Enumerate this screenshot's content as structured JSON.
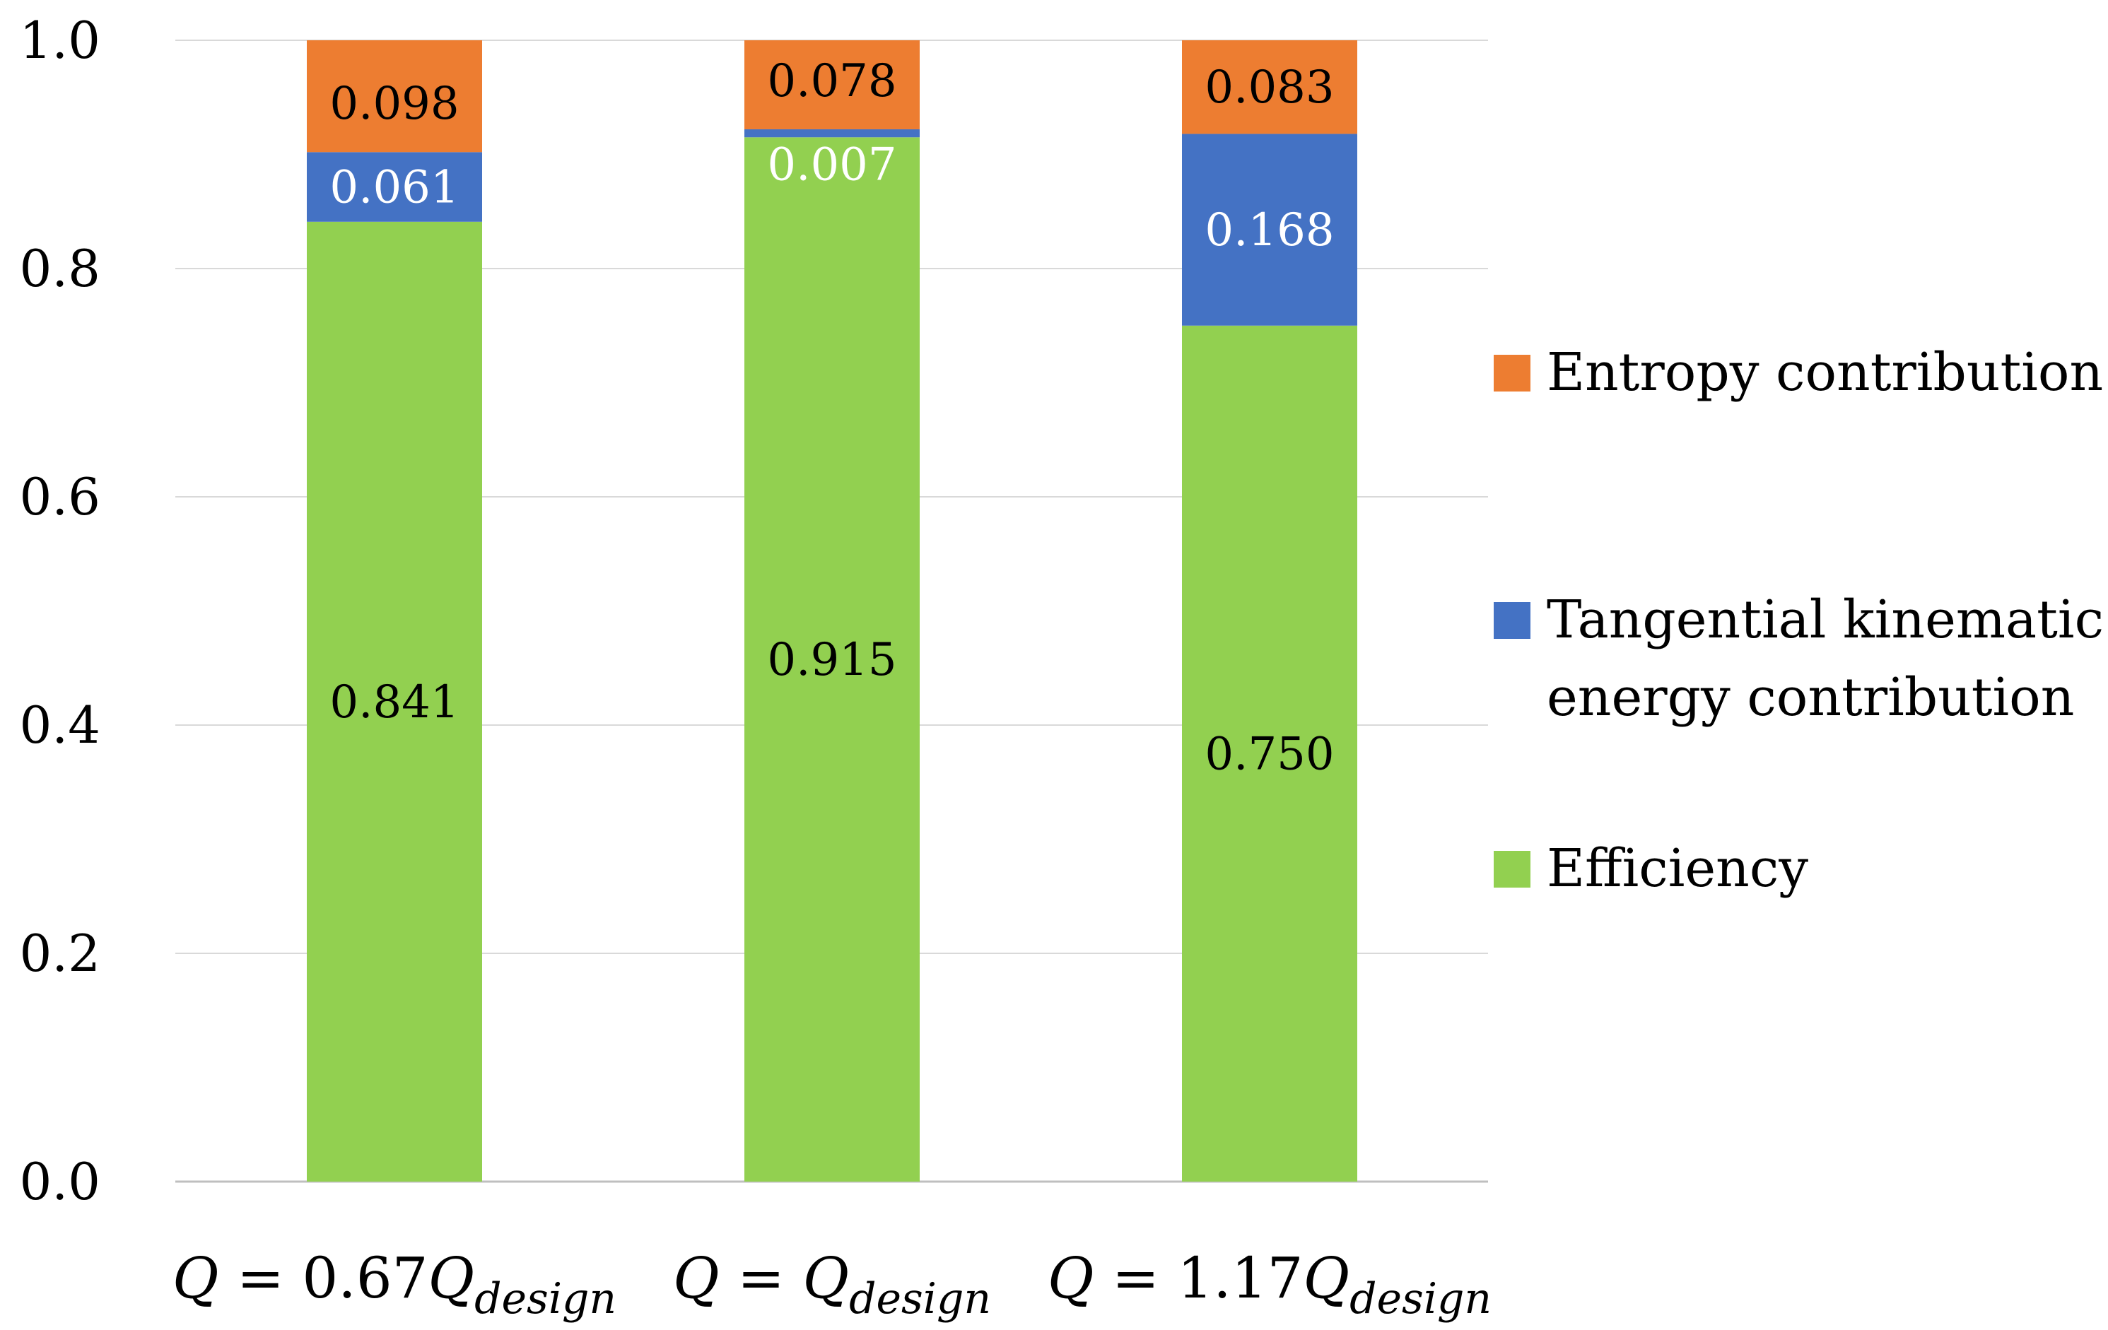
{
  "chart_data": {
    "type": "bar",
    "stacked": true,
    "title": "",
    "xlabel": "",
    "ylabel": "",
    "ylim": [
      0,
      1.0
    ],
    "yticks": [
      "0.0",
      "0.2",
      "0.4",
      "0.6",
      "0.8",
      "1.0"
    ],
    "grid": true,
    "legend_position": "right",
    "categories": [
      {
        "prefix": "Q = 1.17Q",
        "sub": "design",
        "id": "1.17"
      },
      {
        "prefix": "Q = Q",
        "sub": "design",
        "id": "1.00"
      },
      {
        "prefix": "Q = 0.67Q",
        "sub": "design",
        "id": "0.67"
      }
    ],
    "series": [
      {
        "name": "Efficiency",
        "color": "#92d050",
        "label_color": "#000000",
        "values": [
          0.75,
          0.915,
          0.841
        ],
        "labels": [
          "0.750",
          "0.915",
          "0.841"
        ]
      },
      {
        "name": "Tangential kinematic energy contribution",
        "legend_lines": [
          "Tangential kinematic",
          "energy contribution"
        ],
        "color": "#4472c4",
        "label_color": "#ffffff",
        "values": [
          0.168,
          0.007,
          0.061
        ],
        "labels": [
          "0.168",
          "0.007",
          "0.061"
        ]
      },
      {
        "name": "Entropy contribution",
        "color": "#ed7d31",
        "label_color": "#000000",
        "values": [
          0.083,
          0.078,
          0.098
        ],
        "labels": [
          "0.083",
          "0.078",
          "0.098"
        ]
      }
    ],
    "category_order_display": [
      2,
      1,
      0
    ]
  }
}
